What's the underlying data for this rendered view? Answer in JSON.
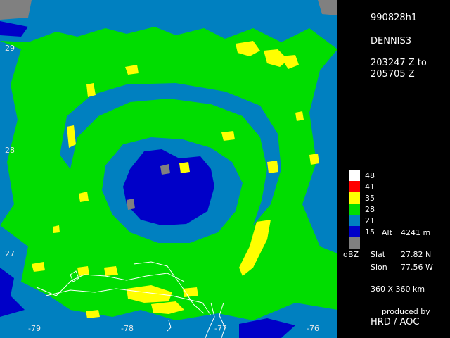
{
  "panel": {
    "flight_id": "990828h1",
    "storm": "DENNIS3",
    "time_start": "203247 Z to",
    "time_end": "205705 Z",
    "alt_label": "Alt",
    "alt_value": "4241 m",
    "units": "dBZ",
    "slat_label": "Slat",
    "slat_value": "27.82 N",
    "slon_label": "Slon",
    "slon_value": "77.56 W",
    "domain": "360 X 360 km",
    "produced_by": "produced by",
    "producer": "HRD / AOC"
  },
  "legend": [
    {
      "label": "48",
      "color": "#ffffff"
    },
    {
      "label": "41",
      "color": "#ff0000"
    },
    {
      "label": "35",
      "color": "#ffff00"
    },
    {
      "label": "28",
      "color": "#00dd00"
    },
    {
      "label": "21",
      "color": "#0080c0"
    },
    {
      "label": "15",
      "color": "#0000c8"
    },
    {
      "label": "",
      "color": "#808080"
    }
  ],
  "lat_ticks": [
    "29",
    "28",
    "27"
  ],
  "lon_ticks": [
    "-79",
    "-78",
    "-77",
    "-76"
  ],
  "colors": {
    "background": "#000000",
    "no_echo": "#808080",
    "coast": "#ffffff"
  }
}
